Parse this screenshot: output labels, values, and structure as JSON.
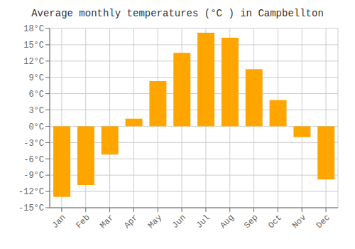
{
  "chart_data": {
    "type": "bar",
    "title": "Average monthly temperatures (°C ) in Campbellton",
    "categories": [
      "Jan",
      "Feb",
      "Mar",
      "Apr",
      "May",
      "Jun",
      "Jul",
      "Aug",
      "Sep",
      "Oct",
      "Nov",
      "Dec"
    ],
    "values": [
      -13.0,
      -10.8,
      -5.2,
      1.4,
      8.3,
      13.5,
      17.2,
      16.3,
      10.5,
      4.8,
      -2.0,
      -9.8
    ],
    "color": "#FFA500",
    "ylim": [
      -15,
      18
    ],
    "yticks": [
      {
        "value": -15,
        "label": "-15°C"
      },
      {
        "value": -12,
        "label": "-12°C"
      },
      {
        "value": -9,
        "label": "-9°C"
      },
      {
        "value": -6,
        "label": "-6°C"
      },
      {
        "value": -3,
        "label": "-3°C"
      },
      {
        "value": 0,
        "label": "0°C"
      },
      {
        "value": 3,
        "label": "3°C"
      },
      {
        "value": 6,
        "label": "6°C"
      },
      {
        "value": 9,
        "label": "9°C"
      },
      {
        "value": 12,
        "label": "12°C"
      },
      {
        "value": 15,
        "label": "15°C"
      },
      {
        "value": 18,
        "label": "18°C"
      }
    ],
    "grid": true
  }
}
